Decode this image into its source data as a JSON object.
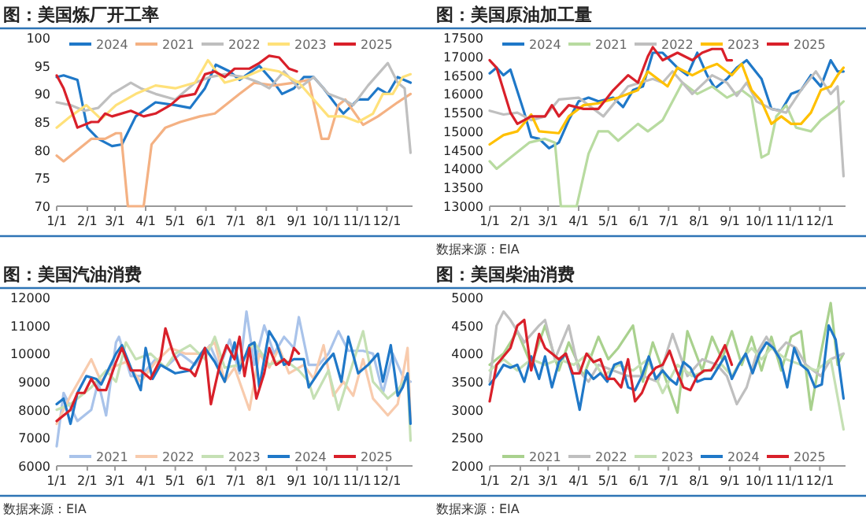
{
  "chart_data": [
    {
      "type": "line",
      "title": "图：美国炼厂开工率",
      "xlim": [
        "--01-01",
        "--12-27"
      ],
      "ylim": [
        70,
        100
      ],
      "yticks": [
        70,
        75,
        80,
        85,
        90,
        95,
        100
      ],
      "xticks": [
        {
          "value": "--01-01",
          "label": "1/1"
        },
        {
          "value": "--02-01",
          "label": "2/1"
        },
        {
          "value": "--03-01",
          "label": "3/1"
        },
        {
          "value": "--04-01",
          "label": "4/1"
        },
        {
          "value": "--05-01",
          "label": "5/1"
        },
        {
          "value": "--06-01",
          "label": "6/1"
        },
        {
          "value": "--07-01",
          "label": "7/1"
        },
        {
          "value": "--08-01",
          "label": "8/1"
        },
        {
          "value": "--09-01",
          "label": "9/1"
        },
        {
          "value": "--10-01",
          "label": "10/1"
        },
        {
          "value": "--11-01",
          "label": "11/1"
        },
        {
          "value": "--12-01",
          "label": "12/1"
        }
      ],
      "legend": "top",
      "marker": "none",
      "line_style": "solid",
      "series": [
        {
          "name": "2024",
          "color": "#1f78c8",
          "x": [
            "--01-01",
            "--01-08",
            "--01-22",
            "--02-01",
            "--02-12",
            "--02-26",
            "--03-08",
            "--03-22",
            "--04-11",
            "--05-01",
            "--05-16",
            "--05-31",
            "--06-11",
            "--06-25",
            "--07-05",
            "--07-25",
            "--08-09",
            "--08-17",
            "--08-29",
            "--09-08",
            "--09-18",
            "--09-28",
            "--10-13",
            "--10-18",
            "--11-02",
            "--11-12",
            "--11-22",
            "--12-02",
            "--12-12",
            "--12-25"
          ],
          "values": [
            93,
            93.3,
            92.5,
            84,
            82,
            80.7,
            81,
            86,
            88.5,
            88,
            87.5,
            91,
            95.2,
            94,
            92.5,
            95,
            92,
            90,
            91,
            93,
            93,
            91,
            87.5,
            86.5,
            89,
            89,
            91,
            90,
            93,
            92
          ]
        },
        {
          "name": "2021",
          "color": "#f4b183",
          "x": [
            "--01-01",
            "--01-08",
            "--01-22",
            "--02-05",
            "--02-19",
            "--03-02",
            "--03-07",
            "--03-14",
            "--03-30",
            "--04-07",
            "--04-21",
            "--05-06",
            "--05-26",
            "--06-10",
            "--07-05",
            "--07-20",
            "--08-09",
            "--08-29",
            "--09-13",
            "--09-26",
            "--10-03",
            "--10-13",
            "--10-20",
            "--11-07",
            "--11-22",
            "--11-30",
            "--12-12",
            "--12-25"
          ],
          "values": [
            79,
            78,
            80,
            82,
            82,
            83,
            83,
            70,
            70,
            81,
            84,
            85,
            86,
            86.5,
            90,
            92,
            91.5,
            92,
            92.5,
            82,
            82,
            88,
            89,
            84.5,
            86,
            87,
            88.5,
            90
          ]
        },
        {
          "name": "2022",
          "color": "#bfbfbf",
          "x": [
            "--01-01",
            "--01-15",
            "--01-29",
            "--02-12",
            "--02-26",
            "--03-17",
            "--03-27",
            "--04-11",
            "--05-01",
            "--05-21",
            "--06-05",
            "--06-20",
            "--07-10",
            "--07-25",
            "--08-04",
            "--08-19",
            "--09-03",
            "--09-18",
            "--10-03",
            "--10-18",
            "--10-28",
            "--11-12",
            "--12-02",
            "--12-12",
            "--12-19",
            "--12-25"
          ],
          "values": [
            88.5,
            88,
            87,
            87.5,
            90,
            92,
            91,
            90,
            89,
            92,
            93,
            93.5,
            93,
            92,
            91,
            94,
            91,
            93,
            90,
            89,
            88,
            91.5,
            95.5,
            92,
            91,
            79.5
          ]
        },
        {
          "name": "2023",
          "color": "#ffe17a",
          "x": [
            "--01-01",
            "--01-15",
            "--01-31",
            "--02-15",
            "--03-02",
            "--03-22",
            "--04-11",
            "--05-01",
            "--05-21",
            "--06-03",
            "--06-20",
            "--07-10",
            "--07-30",
            "--08-14",
            "--09-03",
            "--09-23",
            "--10-03",
            "--10-18",
            "--11-02",
            "--11-17",
            "--11-27",
            "--12-07",
            "--12-17",
            "--12-25"
          ],
          "values": [
            84,
            86,
            88,
            85.5,
            88,
            90,
            91.5,
            91,
            92,
            96,
            92,
            93,
            94.5,
            94,
            92,
            88,
            86,
            86,
            85,
            86.5,
            90,
            90,
            93,
            93.5
          ]
        },
        {
          "name": "2025",
          "color": "#d9202a",
          "x": [
            "--01-01",
            "--01-08",
            "--01-22",
            "--02-05",
            "--02-12",
            "--02-19",
            "--02-26",
            "--03-17",
            "--03-30",
            "--04-11",
            "--04-26",
            "--05-06",
            "--05-21",
            "--05-31",
            "--06-10",
            "--06-20",
            "--06-30",
            "--07-15",
            "--07-25",
            "--08-04",
            "--08-14",
            "--08-24",
            "--09-01"
          ],
          "values": [
            93.3,
            91,
            84,
            85,
            85,
            86.5,
            86,
            87,
            86,
            86.5,
            88,
            89.5,
            90,
            93.5,
            94,
            93,
            94.5,
            94.5,
            95.5,
            96.8,
            96.5,
            94.5,
            94
          ]
        }
      ]
    },
    {
      "type": "line",
      "title": "图：美国原油加工量",
      "annotations": [
        "数据来源：EIA"
      ],
      "xlim": [
        "--01-01",
        "--12-27"
      ],
      "ylim": [
        13000,
        17500
      ],
      "yticks": [
        13000,
        13500,
        14000,
        14500,
        15000,
        15500,
        16000,
        16500,
        17000,
        17500
      ],
      "xticks": [
        {
          "value": "--01-01",
          "label": "1/1"
        },
        {
          "value": "--02-01",
          "label": "2/1"
        },
        {
          "value": "--03-01",
          "label": "3/1"
        },
        {
          "value": "--04-01",
          "label": "4/1"
        },
        {
          "value": "--05-01",
          "label": "5/1"
        },
        {
          "value": "--06-01",
          "label": "6/1"
        },
        {
          "value": "--07-01",
          "label": "7/1"
        },
        {
          "value": "--08-01",
          "label": "8/1"
        },
        {
          "value": "--09-01",
          "label": "9/1"
        },
        {
          "value": "--10-01",
          "label": "10/1"
        },
        {
          "value": "--11-01",
          "label": "11/1"
        },
        {
          "value": "--12-01",
          "label": "12/1"
        }
      ],
      "legend": "top",
      "marker": "none",
      "line_style": "solid",
      "series": [
        {
          "name": "2024",
          "color": "#1f78c8",
          "x": [
            "--01-01",
            "--01-08",
            "--01-15",
            "--01-22",
            "--02-05",
            "--02-12",
            "--02-20",
            "--03-02",
            "--03-12",
            "--03-22",
            "--04-01",
            "--04-11",
            "--04-21",
            "--05-06",
            "--05-16",
            "--05-26",
            "--06-05",
            "--06-15",
            "--06-25",
            "--07-10",
            "--07-20",
            "--07-30",
            "--08-09",
            "--08-17",
            "--08-29",
            "--09-08",
            "--09-18",
            "--10-03",
            "--10-13",
            "--10-23",
            "--11-02",
            "--11-12",
            "--11-22",
            "--12-02",
            "--12-12",
            "--12-19",
            "--12-25"
          ],
          "values": [
            16550,
            16700,
            16500,
            16650,
            15500,
            14850,
            14800,
            14550,
            14700,
            15300,
            15800,
            15900,
            15800,
            15900,
            15650,
            16100,
            16200,
            17100,
            17100,
            16700,
            16500,
            17100,
            16500,
            16150,
            16400,
            16700,
            16900,
            16400,
            15600,
            15550,
            16000,
            16100,
            16500,
            16200,
            16900,
            16600,
            16600
          ]
        },
        {
          "name": "2021",
          "color": "#b8dba0",
          "x": [
            "--01-01",
            "--01-08",
            "--01-22",
            "--02-10",
            "--02-26",
            "--03-08",
            "--03-14",
            "--03-30",
            "--04-11",
            "--04-21",
            "--05-01",
            "--05-11",
            "--05-31",
            "--06-10",
            "--06-25",
            "--07-05",
            "--07-15",
            "--07-30",
            "--08-14",
            "--08-29",
            "--09-13",
            "--09-23",
            "--10-03",
            "--10-10",
            "--10-18",
            "--10-28",
            "--11-07",
            "--11-22",
            "--12-02",
            "--12-17",
            "--12-25"
          ],
          "values": [
            14200,
            14000,
            14300,
            14700,
            14800,
            14700,
            13000,
            13000,
            14400,
            15000,
            15000,
            14750,
            15200,
            15000,
            15300,
            15800,
            16300,
            16000,
            16200,
            15900,
            16100,
            15900,
            14300,
            14400,
            15400,
            15700,
            15100,
            15000,
            15300,
            15600,
            15800
          ]
        },
        {
          "name": "2022",
          "color": "#bfbfbf",
          "x": [
            "--01-01",
            "--01-15",
            "--01-29",
            "--02-12",
            "--02-26",
            "--03-12",
            "--04-01",
            "--04-11",
            "--04-26",
            "--05-21",
            "--06-15",
            "--06-25",
            "--07-05",
            "--07-25",
            "--08-14",
            "--08-29",
            "--09-08",
            "--09-18",
            "--09-28",
            "--10-13",
            "--10-28",
            "--11-12",
            "--11-27",
            "--12-12",
            "--12-19",
            "--12-25"
          ],
          "values": [
            15550,
            15450,
            15500,
            15300,
            15400,
            15850,
            15900,
            15700,
            15400,
            16200,
            16400,
            16300,
            16600,
            16000,
            16500,
            16300,
            15950,
            16300,
            15800,
            15600,
            15500,
            16100,
            16600,
            16000,
            16200,
            13800
          ]
        },
        {
          "name": "2023",
          "color": "#ffc000",
          "x": [
            "--01-01",
            "--01-15",
            "--01-29",
            "--02-12",
            "--02-20",
            "--03-12",
            "--03-22",
            "--04-06",
            "--04-21",
            "--05-11",
            "--05-31",
            "--06-10",
            "--06-30",
            "--07-10",
            "--07-25",
            "--08-09",
            "--08-19",
            "--09-03",
            "--09-13",
            "--09-23",
            "--10-03",
            "--10-13",
            "--10-23",
            "--11-02",
            "--11-12",
            "--11-22",
            "--12-02",
            "--12-12",
            "--12-19",
            "--12-25"
          ],
          "values": [
            14650,
            14900,
            15000,
            15450,
            15000,
            14950,
            15400,
            15700,
            15750,
            15900,
            16100,
            16600,
            16200,
            16700,
            16500,
            16700,
            16800,
            16500,
            16800,
            16100,
            15800,
            15200,
            15400,
            15200,
            15200,
            15500,
            16100,
            16200,
            16500,
            16700
          ]
        },
        {
          "name": "2025",
          "color": "#d9202a",
          "x": [
            "--01-01",
            "--01-08",
            "--01-22",
            "--01-29",
            "--02-12",
            "--02-26",
            "--03-05",
            "--03-12",
            "--03-22",
            "--04-06",
            "--04-21",
            "--05-06",
            "--05-21",
            "--05-31",
            "--06-10",
            "--06-15",
            "--06-25",
            "--07-10",
            "--07-25",
            "--08-04",
            "--08-14",
            "--08-24",
            "--08-29",
            "--09-03"
          ],
          "values": [
            16900,
            16700,
            15500,
            15200,
            15400,
            15400,
            15700,
            15400,
            15700,
            15600,
            15600,
            16100,
            16500,
            16300,
            17000,
            17250,
            16900,
            17100,
            16900,
            17100,
            17200,
            17200,
            16900,
            16900
          ]
        }
      ]
    },
    {
      "type": "line",
      "title": "图：美国汽油消费",
      "annotations": [
        "数据来源：EIA"
      ],
      "xlim": [
        "--01-01",
        "--12-27"
      ],
      "ylim": [
        6000,
        12000
      ],
      "yticks": [
        6000,
        7000,
        8000,
        9000,
        10000,
        11000,
        12000
      ],
      "xticks": [
        {
          "value": "--01-01",
          "label": "1/1"
        },
        {
          "value": "--02-01",
          "label": "2/1"
        },
        {
          "value": "--03-01",
          "label": "3/1"
        },
        {
          "value": "--04-01",
          "label": "4/1"
        },
        {
          "value": "--05-01",
          "label": "5/1"
        },
        {
          "value": "--06-01",
          "label": "6/1"
        },
        {
          "value": "--07-01",
          "label": "7/1"
        },
        {
          "value": "--08-01",
          "label": "8/1"
        },
        {
          "value": "--09-01",
          "label": "9/1"
        },
        {
          "value": "--10-01",
          "label": "10/1"
        },
        {
          "value": "--11-01",
          "label": "11/1"
        },
        {
          "value": "--12-01",
          "label": "12/1"
        }
      ],
      "legend": "bottom",
      "marker": "none",
      "line_style": "solid",
      "series": [
        {
          "name": "2021",
          "color": "#a9c3ea",
          "x": [
            "--01-01",
            "--01-08",
            "--01-22",
            "--02-05",
            "--02-12",
            "--02-20",
            "--03-02",
            "--03-05",
            "--03-17",
            "--03-27",
            "--04-11",
            "--04-21",
            "--05-06",
            "--05-21",
            "--06-05",
            "--06-15",
            "--06-25",
            "--07-05",
            "--07-12",
            "--07-20",
            "--07-30",
            "--08-09",
            "--08-19",
            "--08-29",
            "--09-03",
            "--09-13",
            "--09-23",
            "--10-03",
            "--10-13",
            "--10-23",
            "--11-07",
            "--11-17",
            "--11-27",
            "--12-07",
            "--12-17",
            "--12-25"
          ],
          "values": [
            6700,
            8600,
            7600,
            8000,
            9000,
            7800,
            10400,
            10600,
            9200,
            9200,
            9800,
            9500,
            10000,
            9600,
            10300,
            9500,
            10500,
            9300,
            11500,
            9600,
            11000,
            10000,
            10600,
            10200,
            11300,
            9600,
            9600,
            10000,
            10800,
            10100,
            10100,
            10000,
            8600,
            10000,
            9200,
            9000
          ]
        },
        {
          "name": "2022",
          "color": "#f8cbad",
          "x": [
            "--01-01",
            "--01-15",
            "--02-05",
            "--02-15",
            "--02-25",
            "--03-12",
            "--03-27",
            "--04-11",
            "--04-26",
            "--05-11",
            "--05-26",
            "--06-10",
            "--06-20",
            "--06-30",
            "--07-15",
            "--07-25",
            "--08-04",
            "--08-14",
            "--08-24",
            "--09-08",
            "--09-18",
            "--09-28",
            "--10-08",
            "--10-18",
            "--10-28",
            "--11-07",
            "--11-17",
            "--12-02",
            "--12-12",
            "--12-22",
            "--12-25"
          ],
          "values": [
            7500,
            8500,
            9800,
            9000,
            9500,
            9700,
            9000,
            9700,
            10200,
            10000,
            10000,
            10400,
            9000,
            9500,
            8000,
            10000,
            9500,
            10200,
            9300,
            9600,
            9100,
            10300,
            8500,
            9000,
            8500,
            9800,
            8400,
            7800,
            8200,
            10200,
            7600
          ]
        },
        {
          "name": "2023",
          "color": "#c5e0b4",
          "x": [
            "--01-01",
            "--01-15",
            "--02-05",
            "--02-20",
            "--03-02",
            "--03-12",
            "--03-22",
            "--04-06",
            "--04-21",
            "--05-01",
            "--05-16",
            "--05-31",
            "--06-10",
            "--06-20",
            "--07-05",
            "--07-20",
            "--08-04",
            "--08-19",
            "--09-03",
            "--09-13",
            "--09-18",
            "--10-03",
            "--10-13",
            "--10-28",
            "--11-07",
            "--11-17",
            "--12-02",
            "--12-12",
            "--12-22",
            "--12-25"
          ],
          "values": [
            8000,
            8200,
            8800,
            9400,
            9000,
            10400,
            9800,
            10000,
            9500,
            10000,
            10300,
            9800,
            10600,
            9500,
            9600,
            10400,
            9600,
            9800,
            9400,
            9000,
            8400,
            9400,
            8000,
            9700,
            10800,
            9000,
            8400,
            8700,
            9200,
            6900
          ]
        },
        {
          "name": "2024",
          "color": "#1f78c8",
          "x": [
            "--01-01",
            "--01-08",
            "--01-15",
            "--01-22",
            "--01-31",
            "--02-10",
            "--02-15",
            "--03-02",
            "--03-08",
            "--03-17",
            "--03-27",
            "--04-01",
            "--04-08",
            "--04-16",
            "--04-26",
            "--05-01",
            "--05-16",
            "--05-31",
            "--06-10",
            "--06-20",
            "--06-30",
            "--07-05",
            "--07-15",
            "--07-20",
            "--07-25",
            "--08-04",
            "--08-11",
            "--08-19",
            "--08-29",
            "--09-08",
            "--09-13",
            "--09-28",
            "--10-08",
            "--10-16",
            "--10-23",
            "--11-02",
            "--11-12",
            "--11-22",
            "--11-27",
            "--12-05",
            "--12-12",
            "--12-17",
            "--12-22",
            "--12-25"
          ],
          "values": [
            8200,
            8400,
            7500,
            8600,
            9200,
            9100,
            8900,
            10000,
            10300,
            9500,
            8700,
            10200,
            9100,
            9600,
            9400,
            9300,
            9400,
            10200,
            9700,
            9000,
            10400,
            9400,
            10300,
            10400,
            8800,
            10800,
            10400,
            9600,
            9800,
            9800,
            8800,
            9600,
            10000,
            9000,
            10600,
            9300,
            9600,
            10000,
            9000,
            10300,
            8500,
            8800,
            9300,
            7500
          ]
        },
        {
          "name": "2025",
          "color": "#d9202a",
          "x": [
            "--01-01",
            "--01-15",
            "--01-22",
            "--01-29",
            "--02-05",
            "--02-12",
            "--02-20",
            "--03-02",
            "--03-08",
            "--03-17",
            "--03-27",
            "--04-06",
            "--04-16",
            "--04-21",
            "--04-29",
            "--05-06",
            "--05-16",
            "--05-21",
            "--05-31",
            "--06-06",
            "--06-15",
            "--06-22",
            "--06-30",
            "--07-05",
            "--07-10",
            "--07-15",
            "--07-22",
            "--07-30",
            "--08-04",
            "--08-11",
            "--08-19",
            "--08-24",
            "--08-29",
            "--09-03"
          ],
          "values": [
            7600,
            8000,
            8600,
            8600,
            9100,
            8700,
            8700,
            9700,
            10200,
            9400,
            9400,
            9100,
            9800,
            10900,
            10000,
            9500,
            9400,
            9200,
            10200,
            8200,
            9600,
            10300,
            9800,
            10600,
            9200,
            10200,
            8400,
            9300,
            10200,
            9600,
            9800,
            9600,
            10200,
            10000
          ]
        }
      ]
    },
    {
      "type": "line",
      "title": "图：美国柴油消费",
      "annotations": [
        "数据来源：EIA"
      ],
      "xlim": [
        "--01-01",
        "--12-27"
      ],
      "ylim": [
        2000,
        5000
      ],
      "yticks": [
        2000,
        2500,
        3000,
        3500,
        4000,
        4500,
        5000
      ],
      "xticks": [
        {
          "value": "--01-01",
          "label": "1/1"
        },
        {
          "value": "--02-01",
          "label": "2/1"
        },
        {
          "value": "--03-01",
          "label": "3/1"
        },
        {
          "value": "--04-01",
          "label": "4/1"
        },
        {
          "value": "--05-01",
          "label": "5/1"
        },
        {
          "value": "--06-01",
          "label": "6/1"
        },
        {
          "value": "--07-01",
          "label": "7/1"
        },
        {
          "value": "--08-01",
          "label": "8/1"
        },
        {
          "value": "--09-01",
          "label": "9/1"
        },
        {
          "value": "--10-01",
          "label": "10/1"
        },
        {
          "value": "--11-01",
          "label": "11/1"
        },
        {
          "value": "--12-01",
          "label": "12/1"
        }
      ],
      "legend": "bottom",
      "marker": "none",
      "line_style": "solid",
      "series": [
        {
          "name": "2021",
          "color": "#a9d18e",
          "x": [
            "--01-01",
            "--01-15",
            "--01-29",
            "--02-12",
            "--02-26",
            "--03-12",
            "--03-22",
            "--04-06",
            "--04-21",
            "--05-01",
            "--05-11",
            "--05-26",
            "--06-05",
            "--06-15",
            "--06-25",
            "--07-10",
            "--07-20",
            "--08-04",
            "--08-14",
            "--08-24",
            "--09-03",
            "--09-13",
            "--09-23",
            "--10-03",
            "--10-13",
            "--10-23",
            "--11-02",
            "--11-12",
            "--11-22",
            "--12-02",
            "--12-12",
            "--12-19",
            "--12-25"
          ],
          "values": [
            3800,
            4000,
            4400,
            3800,
            4500,
            3700,
            4200,
            3600,
            4300,
            3900,
            4100,
            4500,
            3500,
            4200,
            3700,
            2950,
            4400,
            3700,
            4300,
            3900,
            4400,
            3800,
            4300,
            3700,
            4300,
            3700,
            4300,
            4400,
            3000,
            4000,
            4900,
            3800,
            4000
          ]
        },
        {
          "name": "2022",
          "color": "#bfbfbf",
          "x": [
            "--01-01",
            "--01-08",
            "--01-15",
            "--01-22",
            "--02-05",
            "--02-20",
            "--02-26",
            "--03-08",
            "--03-22",
            "--04-01",
            "--04-11",
            "--04-21",
            "--05-06",
            "--05-21",
            "--06-05",
            "--06-20",
            "--07-05",
            "--07-20",
            "--08-04",
            "--08-19",
            "--08-29",
            "--09-08",
            "--09-18",
            "--09-28",
            "--10-08",
            "--10-18",
            "--10-28",
            "--11-07",
            "--11-17",
            "--12-02",
            "--12-12",
            "--12-25"
          ],
          "values": [
            3500,
            4500,
            4750,
            4600,
            4200,
            4500,
            4600,
            3900,
            4500,
            3700,
            3500,
            3800,
            3700,
            3600,
            3600,
            3500,
            4350,
            3600,
            3900,
            3800,
            3600,
            3100,
            3400,
            4000,
            4300,
            4000,
            4200,
            4100,
            3800,
            3600,
            3900,
            4000
          ]
        },
        {
          "name": "2023",
          "color": "#c5e0b4",
          "x": [
            "--01-01",
            "--01-15",
            "--01-29",
            "--02-12",
            "--02-26",
            "--03-12",
            "--03-27",
            "--04-11",
            "--04-26",
            "--05-11",
            "--05-26",
            "--06-10",
            "--06-25",
            "--07-10",
            "--07-25",
            "--08-09",
            "--08-24",
            "--09-03",
            "--09-13",
            "--09-23",
            "--10-03",
            "--10-13",
            "--10-28",
            "--11-12",
            "--11-27",
            "--12-12",
            "--12-25"
          ],
          "values": [
            3700,
            3900,
            3700,
            3900,
            3800,
            3900,
            3800,
            4000,
            3600,
            3800,
            3700,
            3900,
            3300,
            3800,
            3600,
            3700,
            3800,
            3600,
            3900,
            4100,
            3900,
            4100,
            3900,
            3800,
            3700,
            3900,
            2650
          ]
        },
        {
          "name": "2024",
          "color": "#1f78c8",
          "x": [
            "--01-01",
            "--01-08",
            "--01-15",
            "--01-22",
            "--01-29",
            "--02-05",
            "--02-12",
            "--02-20",
            "--02-26",
            "--03-05",
            "--03-12",
            "--03-19",
            "--03-26",
            "--04-02",
            "--04-09",
            "--04-16",
            "--04-23",
            "--04-30",
            "--05-07",
            "--05-14",
            "--05-21",
            "--05-28",
            "--06-04",
            "--06-11",
            "--06-18",
            "--06-25",
            "--07-02",
            "--07-09",
            "--07-16",
            "--07-23",
            "--07-30",
            "--08-06",
            "--08-13",
            "--08-20",
            "--08-27",
            "--09-03",
            "--09-10",
            "--09-17",
            "--09-24",
            "--10-01",
            "--10-08",
            "--10-15",
            "--10-22",
            "--10-29",
            "--11-05",
            "--11-12",
            "--11-19",
            "--11-26",
            "--12-03",
            "--12-10",
            "--12-17",
            "--12-25"
          ],
          "values": [
            3450,
            3600,
            3800,
            3750,
            3800,
            3500,
            3950,
            3550,
            3950,
            3400,
            3850,
            4000,
            3600,
            3000,
            3700,
            3550,
            3650,
            3500,
            3800,
            3850,
            3400,
            3350,
            3600,
            3950,
            3550,
            3700,
            3550,
            3450,
            3850,
            3750,
            3500,
            3550,
            3550,
            3750,
            3950,
            3550,
            3800,
            4000,
            3650,
            4000,
            4200,
            4100,
            3900,
            3400,
            4100,
            3800,
            3700,
            3400,
            3450,
            4500,
            4250,
            3200
          ]
        },
        {
          "name": "2025",
          "color": "#d9202a",
          "x": [
            "--01-01",
            "--01-08",
            "--01-22",
            "--01-29",
            "--02-05",
            "--02-12",
            "--02-20",
            "--02-26",
            "--03-05",
            "--03-12",
            "--03-19",
            "--03-26",
            "--04-02",
            "--04-09",
            "--04-16",
            "--04-23",
            "--04-30",
            "--05-07",
            "--05-14",
            "--05-21",
            "--05-28",
            "--06-04",
            "--06-11",
            "--06-18",
            "--06-25",
            "--07-02",
            "--07-09",
            "--07-16",
            "--07-23",
            "--07-30",
            "--08-06",
            "--08-13",
            "--08-20",
            "--08-27",
            "--09-03"
          ],
          "values": [
            3150,
            3800,
            4100,
            4500,
            4600,
            3700,
            4350,
            4100,
            4000,
            3900,
            4000,
            3650,
            3650,
            4000,
            3850,
            3900,
            3550,
            3550,
            3400,
            3900,
            3150,
            3300,
            3600,
            3750,
            3800,
            4050,
            3700,
            3400,
            3350,
            3600,
            3700,
            3700,
            3900,
            4150,
            3800
          ]
        }
      ]
    }
  ]
}
